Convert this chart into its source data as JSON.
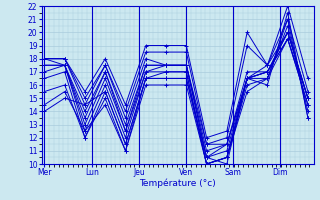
{
  "xlabel": "Température (°c)",
  "background_color": "#cce8f0",
  "grid_color": "#aaccdd",
  "line_color": "#0000cc",
  "ylim": [
    10,
    22
  ],
  "yticks": [
    10,
    11,
    12,
    13,
    14,
    15,
    16,
    17,
    18,
    19,
    20,
    21,
    22
  ],
  "day_labels": [
    "Mer",
    "Lun",
    "Jeu",
    "Ven",
    "Sam",
    "Dim"
  ],
  "day_positions": [
    0.0,
    1.67,
    3.33,
    5.0,
    6.67,
    8.33
  ],
  "xlim": [
    -0.1,
    9.5
  ],
  "series": [
    [
      14.0,
      15.0,
      14.5,
      15.5,
      11.5,
      16.5,
      16.5,
      16.5,
      10.5,
      10.0,
      16.5,
      16.0,
      21.5,
      13.5
    ],
    [
      14.5,
      15.5,
      12.5,
      14.5,
      11.0,
      16.0,
      16.0,
      16.0,
      10.0,
      10.5,
      15.5,
      16.5,
      21.0,
      13.5
    ],
    [
      15.5,
      16.0,
      12.0,
      15.0,
      11.0,
      16.5,
      16.5,
      16.5,
      10.0,
      10.5,
      16.0,
      16.5,
      20.5,
      14.0
    ],
    [
      16.5,
      17.0,
      12.0,
      15.5,
      11.5,
      16.5,
      17.0,
      17.0,
      10.0,
      10.5,
      16.5,
      16.5,
      19.5,
      14.5
    ],
    [
      17.0,
      17.5,
      12.5,
      16.0,
      12.0,
      17.0,
      17.0,
      17.0,
      10.0,
      10.5,
      16.5,
      17.0,
      19.5,
      14.5
    ],
    [
      17.5,
      17.5,
      13.0,
      16.5,
      12.5,
      17.0,
      17.5,
      17.5,
      10.5,
      11.0,
      16.5,
      17.0,
      19.5,
      15.0
    ],
    [
      17.5,
      17.5,
      13.5,
      17.0,
      12.5,
      17.5,
      17.5,
      17.5,
      10.5,
      11.5,
      16.5,
      17.5,
      20.0,
      15.0
    ],
    [
      18.0,
      17.5,
      14.0,
      17.0,
      13.0,
      17.5,
      17.5,
      17.5,
      11.0,
      11.5,
      16.5,
      17.0,
      20.0,
      15.0
    ],
    [
      18.0,
      18.0,
      14.5,
      17.5,
      13.5,
      18.0,
      17.5,
      17.5,
      11.5,
      11.5,
      17.0,
      17.0,
      20.0,
      15.0
    ],
    [
      18.0,
      18.0,
      15.0,
      17.5,
      14.0,
      18.5,
      18.5,
      18.5,
      11.5,
      12.0,
      19.0,
      17.5,
      21.0,
      15.5
    ],
    [
      18.0,
      18.0,
      15.5,
      18.0,
      14.5,
      19.0,
      19.0,
      19.0,
      12.0,
      12.5,
      20.0,
      17.5,
      22.0,
      16.5
    ]
  ]
}
